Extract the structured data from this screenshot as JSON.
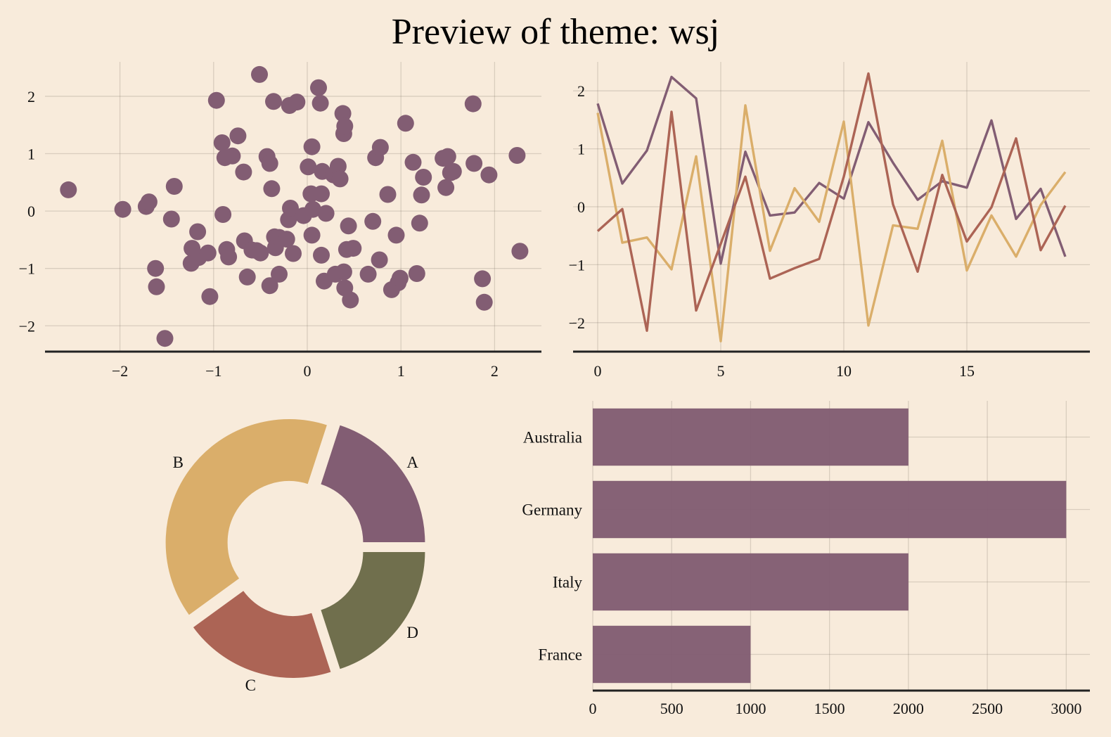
{
  "title": "Preview of theme: wsj",
  "colors": {
    "background": "#F8EBDB",
    "purple": "#825D73",
    "gold": "#DAAE6A",
    "red": "#AC6455",
    "olive": "#706F4D"
  },
  "chart_data": [
    {
      "type": "scatter",
      "xlim": [
        -2.8,
        2.5
      ],
      "ylim": [
        -2.45,
        2.6
      ],
      "xticks": [
        -2,
        -1,
        0,
        1,
        2
      ],
      "yticks": [
        -2,
        -1,
        0,
        1,
        2
      ],
      "tick_labels": {
        "x": [
          "−2",
          "−1",
          "0",
          "1",
          "2"
        ],
        "y": [
          "−2",
          "−1",
          "0",
          "1",
          "2"
        ]
      },
      "grid": true,
      "color": "#825D73",
      "points": [
        [
          -2.55,
          0.37
        ],
        [
          -1.97,
          0.03
        ],
        [
          -1.72,
          0.08
        ],
        [
          -1.69,
          0.16
        ],
        [
          -1.62,
          -1.0
        ],
        [
          -1.61,
          -1.32
        ],
        [
          -1.52,
          -2.22
        ],
        [
          -1.45,
          -0.14
        ],
        [
          -1.42,
          0.43
        ],
        [
          -1.24,
          -0.91
        ],
        [
          -1.23,
          -0.65
        ],
        [
          -1.17,
          -0.36
        ],
        [
          -1.16,
          -0.81
        ],
        [
          -1.06,
          -0.73
        ],
        [
          -1.04,
          -1.49
        ],
        [
          -0.97,
          1.93
        ],
        [
          -0.91,
          1.19
        ],
        [
          -0.9,
          -0.06
        ],
        [
          -0.88,
          0.93
        ],
        [
          -0.86,
          -0.67
        ],
        [
          -0.84,
          -0.8
        ],
        [
          -0.8,
          0.96
        ],
        [
          -0.74,
          1.31
        ],
        [
          -0.68,
          0.68
        ],
        [
          -0.67,
          -0.52
        ],
        [
          -0.64,
          -1.15
        ],
        [
          -0.59,
          -0.68
        ],
        [
          -0.54,
          -0.69
        ],
        [
          -0.51,
          2.38
        ],
        [
          -0.5,
          -0.73
        ],
        [
          -0.43,
          0.95
        ],
        [
          -0.4,
          0.83
        ],
        [
          -0.4,
          -1.3
        ],
        [
          -0.38,
          0.39
        ],
        [
          -0.36,
          1.91
        ],
        [
          -0.35,
          -0.45
        ],
        [
          -0.34,
          -0.64
        ],
        [
          -0.3,
          -0.46
        ],
        [
          -0.3,
          -1.1
        ],
        [
          -0.22,
          -0.49
        ],
        [
          -0.2,
          -0.15
        ],
        [
          -0.19,
          1.84
        ],
        [
          -0.18,
          0.05
        ],
        [
          -0.15,
          -0.74
        ],
        [
          -0.11,
          1.9
        ],
        [
          -0.04,
          -0.08
        ],
        [
          0.01,
          0.77
        ],
        [
          0.04,
          0.3
        ],
        [
          0.05,
          1.12
        ],
        [
          0.05,
          -0.42
        ],
        [
          0.06,
          0.03
        ],
        [
          0.12,
          2.15
        ],
        [
          0.14,
          1.88
        ],
        [
          0.15,
          0.3
        ],
        [
          0.15,
          -0.77
        ],
        [
          0.16,
          0.69
        ],
        [
          0.18,
          -1.22
        ],
        [
          0.2,
          -0.04
        ],
        [
          0.28,
          0.63
        ],
        [
          0.3,
          -1.1
        ],
        [
          0.33,
          0.78
        ],
        [
          0.35,
          0.56
        ],
        [
          0.38,
          1.7
        ],
        [
          0.39,
          1.35
        ],
        [
          0.39,
          -1.06
        ],
        [
          0.4,
          1.48
        ],
        [
          0.4,
          -1.34
        ],
        [
          0.42,
          -0.67
        ],
        [
          0.44,
          -0.26
        ],
        [
          0.46,
          -1.55
        ],
        [
          0.49,
          -0.65
        ],
        [
          0.65,
          -1.1
        ],
        [
          0.7,
          -0.18
        ],
        [
          0.73,
          0.93
        ],
        [
          0.77,
          -0.85
        ],
        [
          0.78,
          1.11
        ],
        [
          0.86,
          0.29
        ],
        [
          0.9,
          -1.37
        ],
        [
          0.95,
          -0.42
        ],
        [
          0.97,
          -1.25
        ],
        [
          0.99,
          -1.17
        ],
        [
          1.05,
          1.53
        ],
        [
          1.13,
          0.85
        ],
        [
          1.17,
          -1.09
        ],
        [
          1.2,
          -0.21
        ],
        [
          1.22,
          0.28
        ],
        [
          1.24,
          0.59
        ],
        [
          1.45,
          0.92
        ],
        [
          1.48,
          0.41
        ],
        [
          1.5,
          0.95
        ],
        [
          1.53,
          0.67
        ],
        [
          1.56,
          0.69
        ],
        [
          1.78,
          0.83
        ],
        [
          1.77,
          1.87
        ],
        [
          1.87,
          -1.18
        ],
        [
          1.89,
          -1.59
        ],
        [
          1.94,
          0.63
        ],
        [
          2.24,
          0.97
        ],
        [
          2.27,
          -0.7
        ]
      ]
    },
    {
      "type": "line",
      "xlim": [
        -1.0,
        20.0
      ],
      "ylim": [
        -2.5,
        2.5
      ],
      "xticks": [
        0,
        5,
        10,
        15
      ],
      "yticks": [
        -2,
        -1,
        0,
        1,
        2
      ],
      "tick_labels": {
        "x": [
          "0",
          "5",
          "10",
          "15"
        ],
        "y": [
          "−2",
          "−1",
          "0",
          "1",
          "2"
        ]
      },
      "grid": true,
      "x": [
        0,
        1,
        2,
        3,
        4,
        5,
        6,
        7,
        8,
        9,
        10,
        11,
        12,
        13,
        14,
        15,
        16,
        17,
        18,
        19
      ],
      "series": [
        {
          "color": "#825D73",
          "values": [
            1.78,
            0.4,
            0.97,
            2.24,
            1.87,
            -0.98,
            0.95,
            -0.15,
            -0.1,
            0.41,
            0.14,
            1.46,
            0.76,
            0.12,
            0.44,
            0.33,
            1.49,
            -0.21,
            0.31,
            -0.86
          ]
        },
        {
          "color": "#DAAE6A",
          "values": [
            1.62,
            -0.62,
            -0.53,
            -1.08,
            0.87,
            -2.32,
            1.75,
            -0.76,
            0.32,
            -0.26,
            1.47,
            -2.05,
            -0.32,
            -0.38,
            1.14,
            -1.1,
            -0.15,
            -0.86,
            0.03,
            0.6
          ]
        },
        {
          "color": "#AC6455",
          "values": [
            -0.42,
            -0.04,
            -2.14,
            1.64,
            -1.79,
            -0.64,
            0.52,
            -1.24,
            -1.06,
            -0.9,
            0.52,
            2.3,
            0.04,
            -1.12,
            0.55,
            -0.6,
            -0.01,
            1.18,
            -0.75,
            0.02
          ]
        }
      ]
    },
    {
      "type": "pie",
      "donut": true,
      "labels": [
        "A",
        "B",
        "C",
        "D"
      ],
      "values": [
        20,
        40,
        20,
        20
      ],
      "colors": [
        "#825D73",
        "#DAAE6A",
        "#AC6455",
        "#706F4D"
      ]
    },
    {
      "type": "bar",
      "orientation": "horizontal",
      "categories": [
        "Australia",
        "Germany",
        "Italy",
        "France"
      ],
      "values": [
        2000,
        3000,
        2000,
        1000
      ],
      "xlim": [
        0,
        3150
      ],
      "xticks": [
        0,
        500,
        1000,
        1500,
        2000,
        2500,
        3000
      ],
      "tick_labels": {
        "x": [
          "0",
          "500",
          "1000",
          "1500",
          "2000",
          "2500",
          "3000"
        ]
      },
      "grid": true,
      "color": "#825D73"
    }
  ]
}
